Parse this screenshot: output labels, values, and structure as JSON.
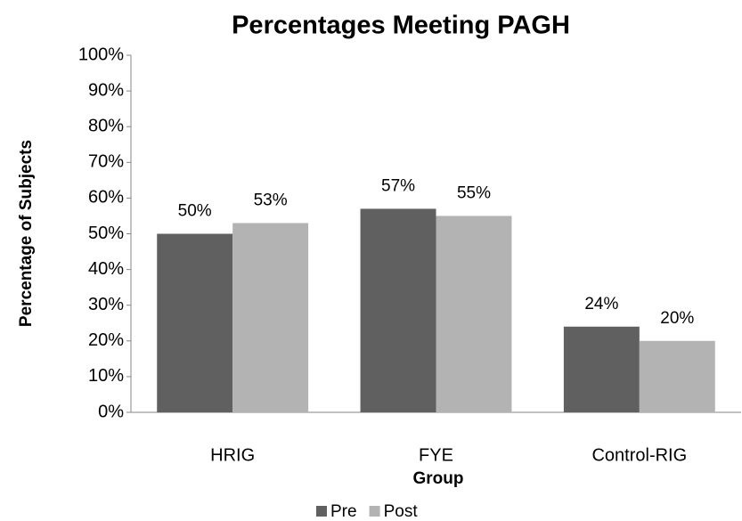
{
  "chart_data": {
    "type": "bar",
    "title": "Percentages Meeting PAGH",
    "x_label": "Group",
    "y_label": "Percentage of Subjects",
    "categories": [
      "HRIG",
      "FYE",
      "Control-RIG"
    ],
    "series": [
      {
        "name": "Pre",
        "color": "#606060",
        "values": [
          50,
          57,
          24
        ],
        "value_labels": [
          "50%",
          "57%",
          "24%"
        ]
      },
      {
        "name": "Post",
        "color": "#b3b3b3",
        "values": [
          53,
          55,
          20
        ],
        "value_labels": [
          "53%",
          "55%",
          "20%"
        ]
      }
    ],
    "ylim": [
      0,
      100
    ],
    "yticks": [
      {
        "value": 0,
        "label": "0%"
      },
      {
        "value": 10,
        "label": "10%"
      },
      {
        "value": 20,
        "label": "20%"
      },
      {
        "value": 30,
        "label": "30%"
      },
      {
        "value": 40,
        "label": "40%"
      },
      {
        "value": 50,
        "label": "50%"
      },
      {
        "value": 60,
        "label": "60%"
      },
      {
        "value": 70,
        "label": "70%"
      },
      {
        "value": 80,
        "label": "80%"
      },
      {
        "value": 90,
        "label": "90%"
      },
      {
        "value": 100,
        "label": "100%"
      }
    ],
    "grid": false,
    "legend": "bottom"
  }
}
